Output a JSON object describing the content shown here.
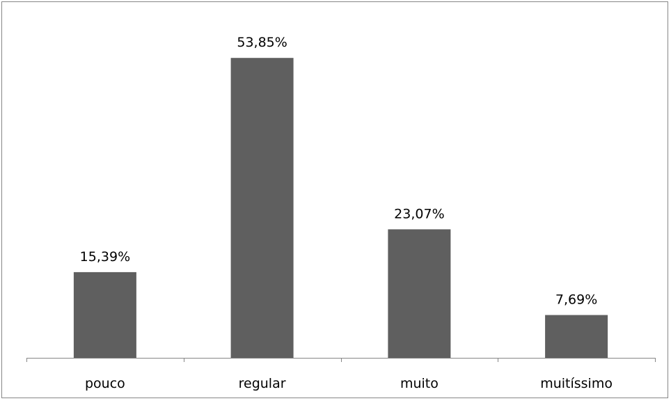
{
  "chart_data": {
    "type": "bar",
    "categories": [
      "pouco",
      "regular",
      "muito",
      "muitíssimo"
    ],
    "values": [
      15.39,
      53.85,
      23.07,
      7.69
    ],
    "data_labels": [
      "15,39%",
      "53,85%",
      "23,07%",
      "7,69%"
    ],
    "ylim": [
      0,
      60
    ],
    "grid": false,
    "legend": "none",
    "colors": {
      "bar": "#5f5f5f",
      "axis": "#868686",
      "text": "#000000",
      "border": "#868686"
    }
  }
}
